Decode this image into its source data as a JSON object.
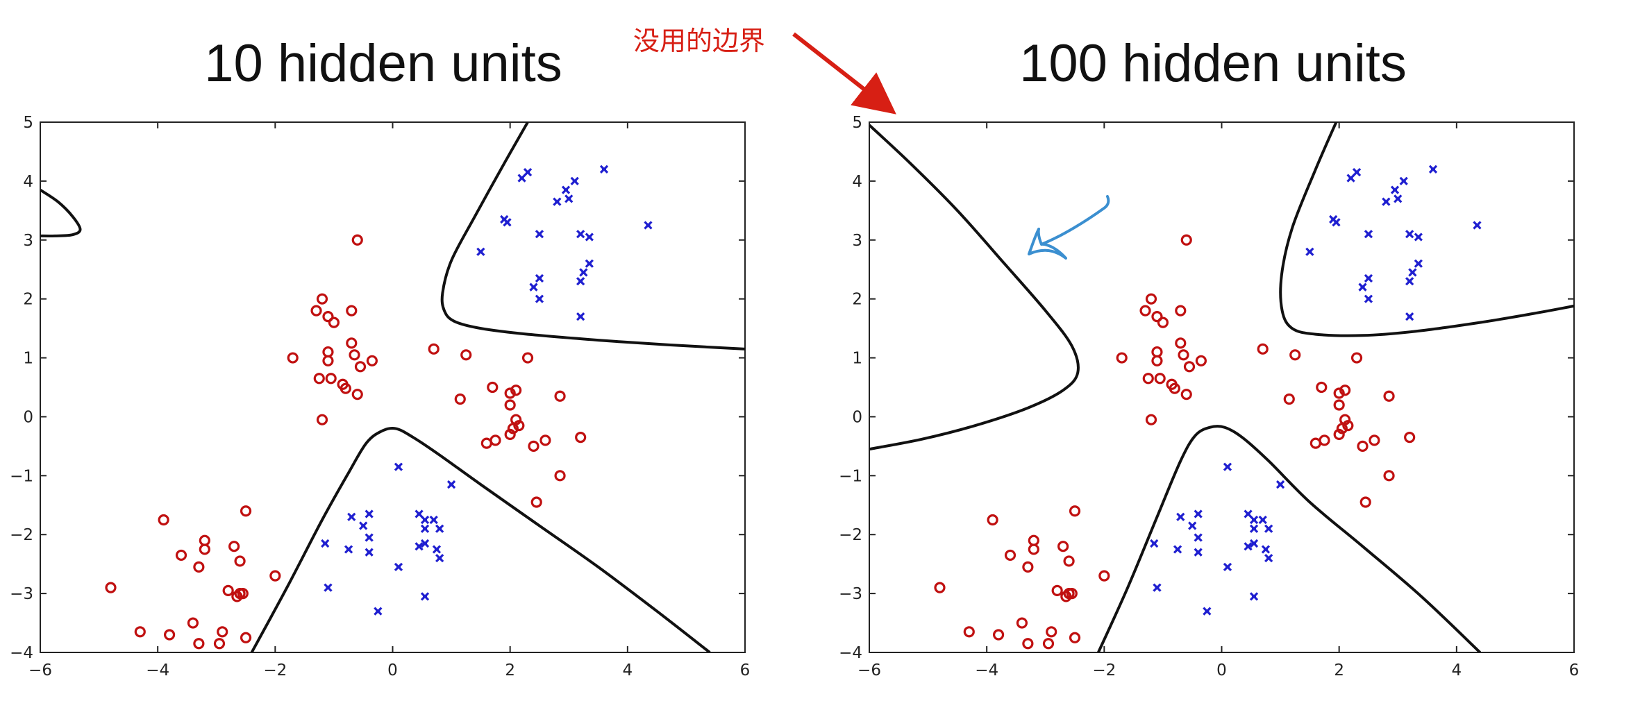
{
  "annotation": {
    "text": "没用的边界",
    "color": "#d71f14"
  },
  "colors": {
    "class_o": "#c01010",
    "class_x": "#1f1fd0",
    "boundary": "#111111",
    "arrow_red": "#d71f14",
    "arrow_blue": "#3b8fd0"
  },
  "chart_data": [
    {
      "type": "scatter",
      "title": "10 hidden units",
      "xlim": [
        -6,
        6
      ],
      "ylim": [
        -4,
        5
      ],
      "xticks": [
        -6,
        -4,
        -2,
        0,
        2,
        4,
        6
      ],
      "yticks": [
        5,
        4,
        3,
        2,
        1,
        0,
        -1,
        -2,
        -3,
        -4
      ],
      "grid": false,
      "series": [
        {
          "marker": "o",
          "color": "#c01010",
          "points": [
            [
              -0.6,
              3.0
            ],
            [
              -1.2,
              2.0
            ],
            [
              -0.7,
              1.8
            ],
            [
              -1.3,
              1.8
            ],
            [
              -1.1,
              1.7
            ],
            [
              -1.0,
              1.6
            ],
            [
              -0.7,
              1.25
            ],
            [
              -1.1,
              1.1
            ],
            [
              -0.65,
              1.05
            ],
            [
              -1.1,
              0.95
            ],
            [
              -1.7,
              1.0
            ],
            [
              -0.35,
              0.95
            ],
            [
              -0.55,
              0.85
            ],
            [
              -1.25,
              0.65
            ],
            [
              -1.05,
              0.65
            ],
            [
              -0.85,
              0.55
            ],
            [
              -0.8,
              0.48
            ],
            [
              -0.6,
              0.38
            ],
            [
              -1.2,
              -0.05
            ],
            [
              0.7,
              1.15
            ],
            [
              1.25,
              1.05
            ],
            [
              2.3,
              1.0
            ],
            [
              1.7,
              0.5
            ],
            [
              2.0,
              0.4
            ],
            [
              2.1,
              0.45
            ],
            [
              2.85,
              0.35
            ],
            [
              1.15,
              0.3
            ],
            [
              2.0,
              0.2
            ],
            [
              2.1,
              -0.05
            ],
            [
              2.15,
              -0.15
            ],
            [
              2.05,
              -0.2
            ],
            [
              2.0,
              -0.3
            ],
            [
              1.75,
              -0.4
            ],
            [
              1.6,
              -0.45
            ],
            [
              2.6,
              -0.4
            ],
            [
              2.4,
              -0.5
            ],
            [
              3.2,
              -0.35
            ],
            [
              2.85,
              -1.0
            ],
            [
              2.45,
              -1.45
            ],
            [
              -3.9,
              -1.75
            ],
            [
              -2.5,
              -1.6
            ],
            [
              -3.2,
              -2.1
            ],
            [
              -2.7,
              -2.2
            ],
            [
              -3.2,
              -2.25
            ],
            [
              -3.6,
              -2.35
            ],
            [
              -2.6,
              -2.45
            ],
            [
              -3.3,
              -2.55
            ],
            [
              -2.0,
              -2.7
            ],
            [
              -4.8,
              -2.9
            ],
            [
              -2.8,
              -2.95
            ],
            [
              -2.6,
              -3.0
            ],
            [
              -2.55,
              -3.0
            ],
            [
              -2.65,
              -3.05
            ],
            [
              -3.4,
              -3.5
            ],
            [
              -4.3,
              -3.65
            ],
            [
              -3.8,
              -3.7
            ],
            [
              -2.9,
              -3.65
            ],
            [
              -2.5,
              -3.75
            ],
            [
              -3.3,
              -3.85
            ],
            [
              -2.95,
              -3.85
            ]
          ]
        },
        {
          "marker": "x",
          "color": "#1f1fd0",
          "points": [
            [
              3.6,
              4.2
            ],
            [
              2.3,
              4.15
            ],
            [
              2.2,
              4.05
            ],
            [
              3.1,
              4.0
            ],
            [
              2.95,
              3.85
            ],
            [
              3.0,
              3.7
            ],
            [
              2.8,
              3.65
            ],
            [
              1.9,
              3.35
            ],
            [
              1.95,
              3.3
            ],
            [
              4.35,
              3.25
            ],
            [
              3.2,
              3.1
            ],
            [
              2.5,
              3.1
            ],
            [
              3.35,
              3.05
            ],
            [
              1.5,
              2.8
            ],
            [
              3.35,
              2.6
            ],
            [
              3.25,
              2.45
            ],
            [
              2.5,
              2.35
            ],
            [
              3.2,
              2.3
            ],
            [
              2.4,
              2.2
            ],
            [
              2.5,
              2.0
            ],
            [
              3.2,
              1.7
            ],
            [
              0.1,
              -0.85
            ],
            [
              1.0,
              -1.15
            ],
            [
              -0.7,
              -1.7
            ],
            [
              0.45,
              -1.65
            ],
            [
              -0.4,
              -1.65
            ],
            [
              0.55,
              -1.75
            ],
            [
              0.7,
              -1.75
            ],
            [
              -0.5,
              -1.85
            ],
            [
              0.55,
              -1.9
            ],
            [
              0.8,
              -1.9
            ],
            [
              -0.4,
              -2.05
            ],
            [
              -1.15,
              -2.15
            ],
            [
              0.55,
              -2.15
            ],
            [
              0.45,
              -2.2
            ],
            [
              -0.75,
              -2.25
            ],
            [
              0.75,
              -2.25
            ],
            [
              -0.4,
              -2.3
            ],
            [
              0.8,
              -2.4
            ],
            [
              0.1,
              -2.55
            ],
            [
              -1.1,
              -2.9
            ],
            [
              0.55,
              -3.05
            ],
            [
              -0.25,
              -3.3
            ]
          ]
        }
      ],
      "boundaries": [
        [
          [
            -6,
            3.85
          ],
          [
            -5.7,
            3.65
          ],
          [
            -5.45,
            3.4
          ],
          [
            -5.32,
            3.18
          ],
          [
            -5.45,
            3.09
          ],
          [
            -5.75,
            3.07
          ],
          [
            -6,
            3.07
          ]
        ],
        [
          [
            2.3,
            5.0
          ],
          [
            1.9,
            4.3
          ],
          [
            1.4,
            3.4
          ],
          [
            1.0,
            2.65
          ],
          [
            0.85,
            2.1
          ],
          [
            0.88,
            1.8
          ],
          [
            1.05,
            1.62
          ],
          [
            1.5,
            1.5
          ],
          [
            2.3,
            1.4
          ],
          [
            3.5,
            1.3
          ],
          [
            4.7,
            1.22
          ],
          [
            6,
            1.15
          ]
        ],
        [
          [
            -2.4,
            -4.0
          ],
          [
            -1.8,
            -2.9
          ],
          [
            -1.2,
            -1.75
          ],
          [
            -0.75,
            -0.95
          ],
          [
            -0.45,
            -0.45
          ],
          [
            -0.2,
            -0.25
          ],
          [
            0.05,
            -0.2
          ],
          [
            0.35,
            -0.35
          ],
          [
            0.8,
            -0.65
          ],
          [
            1.5,
            -1.15
          ],
          [
            2.5,
            -1.85
          ],
          [
            3.5,
            -2.55
          ],
          [
            4.5,
            -3.3
          ],
          [
            5.4,
            -4.0
          ]
        ]
      ]
    },
    {
      "type": "scatter",
      "title": "100 hidden units",
      "xlim": [
        -6,
        6
      ],
      "ylim": [
        -4,
        5
      ],
      "xticks": [
        -6,
        -4,
        -2,
        0,
        2,
        4,
        6
      ],
      "yticks": [
        5,
        4,
        3,
        2,
        1,
        0,
        -1,
        -2,
        -3,
        -4
      ],
      "grid": false,
      "series": [
        {
          "marker": "o",
          "color": "#c01010",
          "points": [
            [
              -0.6,
              3.0
            ],
            [
              -1.2,
              2.0
            ],
            [
              -0.7,
              1.8
            ],
            [
              -1.3,
              1.8
            ],
            [
              -1.1,
              1.7
            ],
            [
              -1.0,
              1.6
            ],
            [
              -0.7,
              1.25
            ],
            [
              -1.1,
              1.1
            ],
            [
              -0.65,
              1.05
            ],
            [
              -1.1,
              0.95
            ],
            [
              -1.7,
              1.0
            ],
            [
              -0.35,
              0.95
            ],
            [
              -0.55,
              0.85
            ],
            [
              -1.25,
              0.65
            ],
            [
              -1.05,
              0.65
            ],
            [
              -0.85,
              0.55
            ],
            [
              -0.8,
              0.48
            ],
            [
              -0.6,
              0.38
            ],
            [
              -1.2,
              -0.05
            ],
            [
              0.7,
              1.15
            ],
            [
              1.25,
              1.05
            ],
            [
              2.3,
              1.0
            ],
            [
              1.7,
              0.5
            ],
            [
              2.0,
              0.4
            ],
            [
              2.1,
              0.45
            ],
            [
              2.85,
              0.35
            ],
            [
              1.15,
              0.3
            ],
            [
              2.0,
              0.2
            ],
            [
              2.1,
              -0.05
            ],
            [
              2.15,
              -0.15
            ],
            [
              2.05,
              -0.2
            ],
            [
              2.0,
              -0.3
            ],
            [
              1.75,
              -0.4
            ],
            [
              1.6,
              -0.45
            ],
            [
              2.6,
              -0.4
            ],
            [
              2.4,
              -0.5
            ],
            [
              3.2,
              -0.35
            ],
            [
              2.85,
              -1.0
            ],
            [
              2.45,
              -1.45
            ],
            [
              -3.9,
              -1.75
            ],
            [
              -2.5,
              -1.6
            ],
            [
              -3.2,
              -2.1
            ],
            [
              -2.7,
              -2.2
            ],
            [
              -3.2,
              -2.25
            ],
            [
              -3.6,
              -2.35
            ],
            [
              -2.6,
              -2.45
            ],
            [
              -3.3,
              -2.55
            ],
            [
              -2.0,
              -2.7
            ],
            [
              -4.8,
              -2.9
            ],
            [
              -2.8,
              -2.95
            ],
            [
              -2.6,
              -3.0
            ],
            [
              -2.55,
              -3.0
            ],
            [
              -2.65,
              -3.05
            ],
            [
              -3.4,
              -3.5
            ],
            [
              -4.3,
              -3.65
            ],
            [
              -3.8,
              -3.7
            ],
            [
              -2.9,
              -3.65
            ],
            [
              -2.5,
              -3.75
            ],
            [
              -3.3,
              -3.85
            ],
            [
              -2.95,
              -3.85
            ]
          ]
        },
        {
          "marker": "x",
          "color": "#1f1fd0",
          "points": [
            [
              3.6,
              4.2
            ],
            [
              2.3,
              4.15
            ],
            [
              2.2,
              4.05
            ],
            [
              3.1,
              4.0
            ],
            [
              2.95,
              3.85
            ],
            [
              3.0,
              3.7
            ],
            [
              2.8,
              3.65
            ],
            [
              1.9,
              3.35
            ],
            [
              1.95,
              3.3
            ],
            [
              4.35,
              3.25
            ],
            [
              3.2,
              3.1
            ],
            [
              2.5,
              3.1
            ],
            [
              3.35,
              3.05
            ],
            [
              1.5,
              2.8
            ],
            [
              3.35,
              2.6
            ],
            [
              3.25,
              2.45
            ],
            [
              2.5,
              2.35
            ],
            [
              3.2,
              2.3
            ],
            [
              2.4,
              2.2
            ],
            [
              2.5,
              2.0
            ],
            [
              3.2,
              1.7
            ],
            [
              0.1,
              -0.85
            ],
            [
              1.0,
              -1.15
            ],
            [
              -0.7,
              -1.7
            ],
            [
              0.45,
              -1.65
            ],
            [
              -0.4,
              -1.65
            ],
            [
              0.55,
              -1.75
            ],
            [
              0.7,
              -1.75
            ],
            [
              -0.5,
              -1.85
            ],
            [
              0.55,
              -1.9
            ],
            [
              0.8,
              -1.9
            ],
            [
              -0.4,
              -2.05
            ],
            [
              -1.15,
              -2.15
            ],
            [
              0.55,
              -2.15
            ],
            [
              0.45,
              -2.2
            ],
            [
              -0.75,
              -2.25
            ],
            [
              0.75,
              -2.25
            ],
            [
              -0.4,
              -2.3
            ],
            [
              0.8,
              -2.4
            ],
            [
              0.1,
              -2.55
            ],
            [
              -1.1,
              -2.9
            ],
            [
              0.55,
              -3.05
            ],
            [
              -0.25,
              -3.3
            ]
          ]
        }
      ],
      "boundaries": [
        [
          [
            -6,
            4.95
          ],
          [
            -5.3,
            4.3
          ],
          [
            -4.5,
            3.5
          ],
          [
            -3.7,
            2.6
          ],
          [
            -3.0,
            1.8
          ],
          [
            -2.55,
            1.2
          ],
          [
            -2.45,
            0.75
          ],
          [
            -2.7,
            0.45
          ],
          [
            -3.3,
            0.15
          ],
          [
            -4.2,
            -0.15
          ],
          [
            -5.1,
            -0.38
          ],
          [
            -6,
            -0.55
          ]
        ],
        [
          [
            1.95,
            5.0
          ],
          [
            1.6,
            4.2
          ],
          [
            1.2,
            3.2
          ],
          [
            1.02,
            2.4
          ],
          [
            1.03,
            1.8
          ],
          [
            1.2,
            1.5
          ],
          [
            1.6,
            1.4
          ],
          [
            2.4,
            1.38
          ],
          [
            3.3,
            1.45
          ],
          [
            4.4,
            1.6
          ],
          [
            5.3,
            1.75
          ],
          [
            6,
            1.88
          ]
        ],
        [
          [
            -2.1,
            -4.0
          ],
          [
            -1.6,
            -2.9
          ],
          [
            -1.1,
            -1.7
          ],
          [
            -0.7,
            -0.75
          ],
          [
            -0.45,
            -0.32
          ],
          [
            -0.2,
            -0.18
          ],
          [
            0.05,
            -0.18
          ],
          [
            0.35,
            -0.35
          ],
          [
            0.8,
            -0.75
          ],
          [
            1.5,
            -1.45
          ],
          [
            2.4,
            -2.2
          ],
          [
            3.4,
            -3.05
          ],
          [
            4.4,
            -4.0
          ]
        ]
      ]
    }
  ]
}
